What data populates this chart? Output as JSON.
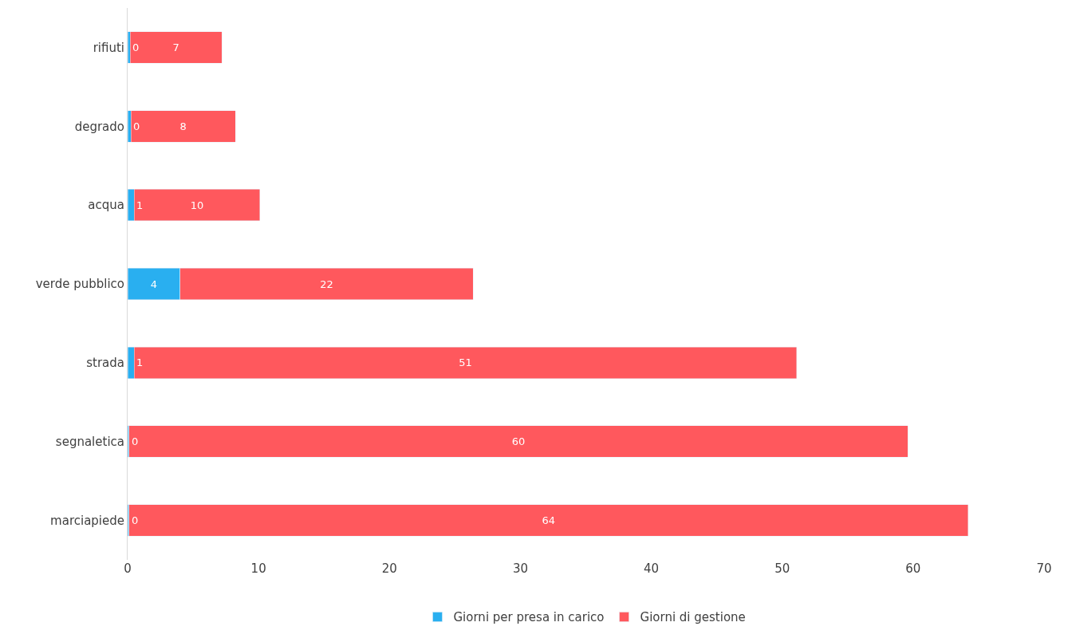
{
  "chart_data": {
    "type": "bar",
    "orientation": "horizontal",
    "stacked": true,
    "categories": [
      "rifiuti",
      "degrado",
      "acqua",
      "verde pubblico",
      "strada",
      "segnaletica",
      "marciapiede"
    ],
    "series": [
      {
        "name": "Giorni per presa in carico",
        "color": "#29aff0",
        "values": [
          0.2,
          0.25,
          0.5,
          4.0,
          0.5,
          0.1,
          0.1
        ],
        "value_labels": [
          "0",
          "0",
          "1",
          "4",
          "1",
          "0",
          "0"
        ]
      },
      {
        "name": "Giorni di gestione",
        "color": "#ff585d",
        "values": [
          7.0,
          8.0,
          9.6,
          22.4,
          50.6,
          59.5,
          64.1
        ],
        "value_labels": [
          "7",
          "8",
          "10",
          "22",
          "51",
          "60",
          "64"
        ]
      }
    ],
    "xlim": [
      0,
      70
    ],
    "xticks": [
      0,
      10,
      20,
      30,
      40,
      50,
      60,
      70
    ],
    "legend": "bottom"
  }
}
